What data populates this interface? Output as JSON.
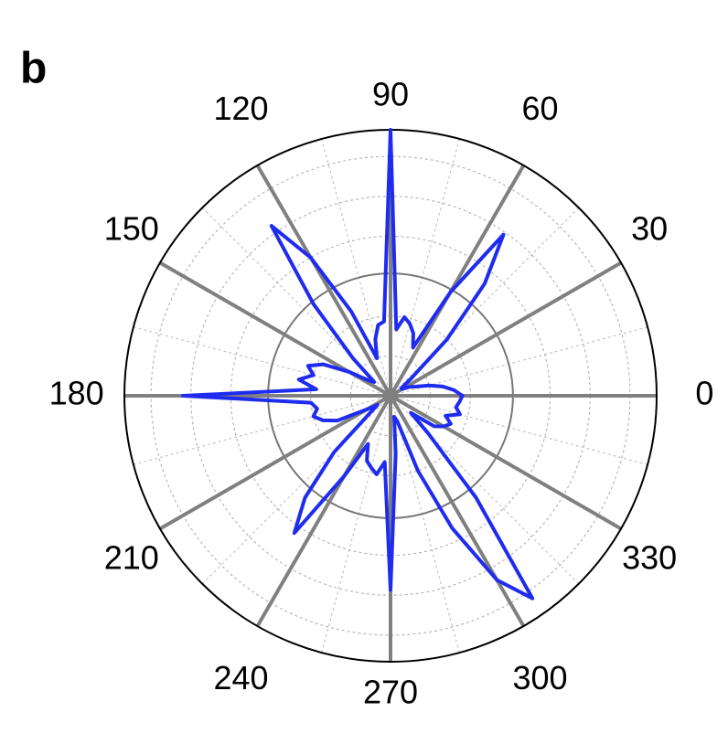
{
  "panel_label": "b",
  "chart_data": {
    "type": "polar",
    "thetaticks": [
      0,
      30,
      60,
      90,
      120,
      150,
      180,
      210,
      240,
      270,
      300,
      330
    ],
    "rlim": [
      0,
      1
    ],
    "rticks": [
      0.15,
      0.3,
      0.6,
      0.75,
      0.9
    ],
    "reference_circle": 0.46,
    "grid": true,
    "series": [
      {
        "color": "#1f2cf0",
        "theta": [
          0,
          5,
          10,
          15,
          20,
          25,
          30,
          35,
          40,
          45,
          50,
          55,
          60,
          65,
          70,
          75,
          80,
          85,
          90,
          95,
          100,
          105,
          110,
          115,
          120,
          125,
          130,
          135,
          140,
          145,
          150,
          155,
          160,
          165,
          170,
          175,
          180,
          185,
          190,
          195,
          200,
          205,
          210,
          215,
          220,
          225,
          230,
          235,
          240,
          245,
          250,
          255,
          260,
          265,
          270,
          275,
          280,
          285,
          290,
          295,
          300,
          305,
          310,
          315,
          320,
          325,
          330,
          335,
          340,
          345,
          350,
          355
        ],
        "values": [
          0.27,
          0.24,
          0.2,
          0.15,
          0.1,
          0.08,
          0.05,
          0.05,
          0.1,
          0.3,
          0.55,
          0.74,
          0.45,
          0.2,
          0.25,
          0.28,
          0.3,
          0.25,
          1.0,
          0.28,
          0.27,
          0.22,
          0.15,
          0.35,
          0.6,
          0.78,
          0.45,
          0.2,
          0.08,
          0.1,
          0.18,
          0.28,
          0.33,
          0.3,
          0.35,
          0.28,
          0.78,
          0.3,
          0.28,
          0.3,
          0.27,
          0.22,
          0.1,
          0.06,
          0.1,
          0.3,
          0.5,
          0.63,
          0.35,
          0.2,
          0.26,
          0.28,
          0.3,
          0.25,
          0.73,
          0.22,
          0.08,
          0.1,
          0.3,
          0.55,
          0.8,
          0.93,
          0.5,
          0.2,
          0.1,
          0.2,
          0.23,
          0.25,
          0.22,
          0.27,
          0.25,
          0.26
        ]
      }
    ]
  }
}
